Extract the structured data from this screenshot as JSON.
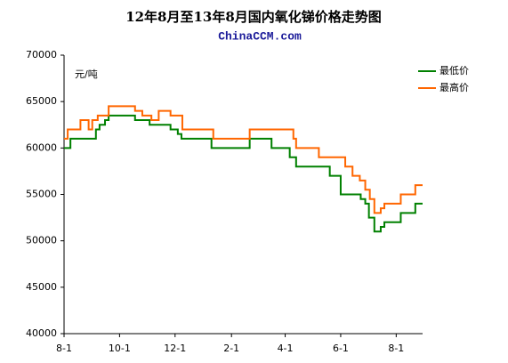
{
  "chart_data": {
    "type": "line",
    "title": "12年8月至13年8月国内氧化锑价格走势图",
    "subtitle": "ChinaCCM.com",
    "y_unit": "元/吨",
    "xlim": [
      0,
      394
    ],
    "xticks": [
      {
        "value": 0,
        "label": "8-1"
      },
      {
        "value": 61,
        "label": "10-1"
      },
      {
        "value": 122,
        "label": "12-1"
      },
      {
        "value": 184,
        "label": "2-1"
      },
      {
        "value": 243,
        "label": "4-1"
      },
      {
        "value": 304,
        "label": "6-1"
      },
      {
        "value": 365,
        "label": "8-1"
      }
    ],
    "ylim": [
      40000,
      70000
    ],
    "yticks": [
      40000,
      45000,
      50000,
      55000,
      60000,
      65000,
      70000
    ],
    "legend": "upper right",
    "series": [
      {
        "name": "最低价",
        "color": "#008000",
        "x": [
          0,
          7,
          7,
          35,
          35,
          39,
          39,
          45,
          45,
          49,
          49,
          78,
          78,
          94,
          94,
          117,
          117,
          125,
          125,
          129,
          129,
          162,
          162,
          204,
          204,
          228,
          228,
          248,
          248,
          255,
          255,
          292,
          292,
          304,
          304,
          326,
          326,
          331,
          331,
          335,
          335,
          341,
          341,
          348,
          348,
          352,
          352,
          370,
          370,
          386,
          386,
          394
        ],
        "values": [
          60000,
          60000,
          61000,
          61000,
          62000,
          62000,
          62500,
          62500,
          63000,
          63000,
          63500,
          63500,
          63000,
          63000,
          62500,
          62500,
          62000,
          62000,
          61500,
          61500,
          61000,
          61000,
          60000,
          60000,
          61000,
          61000,
          60000,
          60000,
          59000,
          59000,
          58000,
          58000,
          57000,
          57000,
          55000,
          55000,
          54500,
          54500,
          54000,
          54000,
          52500,
          52500,
          51000,
          51000,
          51500,
          51500,
          52000,
          52000,
          53000,
          53000,
          54000,
          54000
        ]
      },
      {
        "name": "最高价",
        "color": "#ff6600",
        "x": [
          0,
          4,
          4,
          18,
          18,
          27,
          27,
          31,
          31,
          37,
          37,
          49,
          49,
          78,
          78,
          86,
          86,
          96,
          96,
          104,
          104,
          117,
          117,
          130,
          130,
          164,
          164,
          204,
          204,
          252,
          252,
          255,
          255,
          280,
          280,
          309,
          309,
          317,
          317,
          325,
          325,
          331,
          331,
          336,
          336,
          341,
          341,
          348,
          348,
          352,
          352,
          370,
          370,
          386,
          386,
          394
        ],
        "values": [
          61000,
          61000,
          62000,
          62000,
          63000,
          63000,
          62000,
          62000,
          63000,
          63000,
          63500,
          63500,
          64500,
          64500,
          64000,
          64000,
          63500,
          63500,
          63000,
          63000,
          64000,
          64000,
          63500,
          63500,
          62000,
          62000,
          61000,
          61000,
          62000,
          62000,
          61000,
          61000,
          60000,
          60000,
          59000,
          59000,
          58000,
          58000,
          57000,
          57000,
          56500,
          56500,
          55500,
          55500,
          54500,
          54500,
          53000,
          53000,
          53500,
          53500,
          54000,
          54000,
          55000,
          55000,
          56000,
          56000
        ]
      }
    ]
  }
}
